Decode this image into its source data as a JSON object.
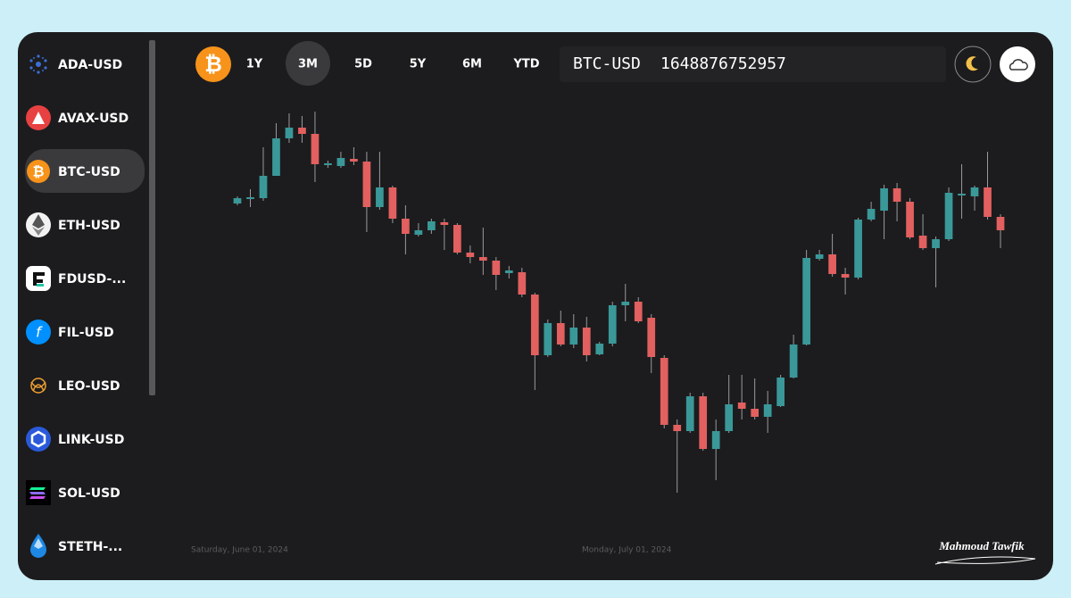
{
  "sidebar": {
    "items": [
      "ADA-USD",
      "AVAX-USD",
      "BTC-USD",
      "ETH-USD",
      "FDUSD-...",
      "FIL-USD",
      "LEO-USD",
      "LINK-USD",
      "SOL-USD",
      "STETH-..."
    ]
  },
  "toolbar": {
    "ranges": [
      "1Y",
      "3M",
      "5D",
      "5Y",
      "6M",
      "YTD"
    ]
  },
  "ticker": {
    "symbol": "BTC-USD",
    "value": 1648876752957
  },
  "chart_data": {
    "type": "candlestick",
    "x_labels": [
      "Saturday, June 01, 2024",
      "Monday, July 01, 2024"
    ],
    "up_color": "#3a9899",
    "down_color": "#e2605f",
    "ylim": [
      40,
      480
    ],
    "open": [
      372,
      377,
      378,
      403,
      445,
      457,
      450,
      415,
      414,
      422,
      419,
      368,
      390,
      355,
      337,
      342,
      351,
      348,
      317,
      312,
      308,
      294,
      295,
      270,
      202,
      238,
      214,
      233,
      203,
      215,
      258,
      262,
      244,
      199,
      124,
      117,
      156,
      97,
      117,
      149,
      142,
      133,
      145,
      177,
      214,
      310,
      315,
      293,
      289,
      354,
      364,
      389,
      374,
      336,
      322,
      332,
      381,
      380,
      390,
      357
    ],
    "high": [
      380,
      388,
      435,
      462,
      473,
      470,
      475,
      420,
      430,
      435,
      430,
      430,
      392,
      370,
      350,
      355,
      355,
      350,
      325,
      345,
      312,
      302,
      300,
      272,
      242,
      252,
      248,
      245,
      217,
      262,
      282,
      267,
      248,
      202,
      130,
      160,
      160,
      130,
      180,
      180,
      176,
      162,
      180,
      225,
      320,
      320,
      338,
      300,
      356,
      374,
      393,
      395,
      378,
      360,
      335,
      390,
      416,
      392,
      430,
      360
    ],
    "low": [
      370,
      368,
      375,
      403,
      440,
      440,
      396,
      412,
      412,
      415,
      340,
      365,
      350,
      315,
      335,
      338,
      320,
      315,
      305,
      292,
      275,
      288,
      267,
      163,
      200,
      212,
      210,
      195,
      202,
      212,
      240,
      238,
      182,
      120,
      48,
      115,
      95,
      62,
      115,
      130,
      130,
      115,
      144,
      176,
      213,
      308,
      290,
      270,
      287,
      352,
      332,
      352,
      332,
      320,
      278,
      330,
      355,
      364,
      354,
      322
    ],
    "close": [
      378,
      379,
      403,
      445,
      457,
      450,
      416,
      417,
      423,
      419,
      368,
      390,
      355,
      338,
      342,
      352,
      348,
      317,
      312,
      308,
      292,
      297,
      270,
      202,
      238,
      214,
      233,
      202,
      215,
      258,
      262,
      240,
      200,
      124,
      117,
      156,
      97,
      117,
      147,
      142,
      133,
      147,
      177,
      214,
      311,
      315,
      293,
      289,
      354,
      366,
      389,
      374,
      334,
      322,
      332,
      384,
      383,
      390,
      357,
      342
    ]
  },
  "signature": "Mahmoud Tawfik"
}
